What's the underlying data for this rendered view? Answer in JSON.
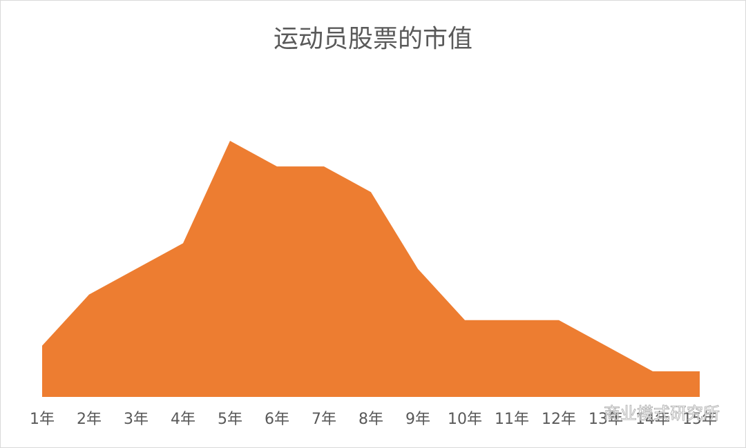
{
  "chart_data": {
    "type": "area",
    "title": "运动员股票的市值",
    "categories": [
      "1年",
      "2年",
      "3年",
      "4年",
      "5年",
      "6年",
      "7年",
      "8年",
      "9年",
      "10年",
      "11年",
      "12年",
      "13年",
      "14年",
      "15年"
    ],
    "values": [
      2,
      4,
      5,
      6,
      10,
      9,
      9,
      8,
      5,
      3,
      3,
      3,
      2,
      1,
      1
    ],
    "color": "#ed7d31",
    "ylim": [
      0,
      10
    ]
  },
  "watermark": "商业模式研究所"
}
